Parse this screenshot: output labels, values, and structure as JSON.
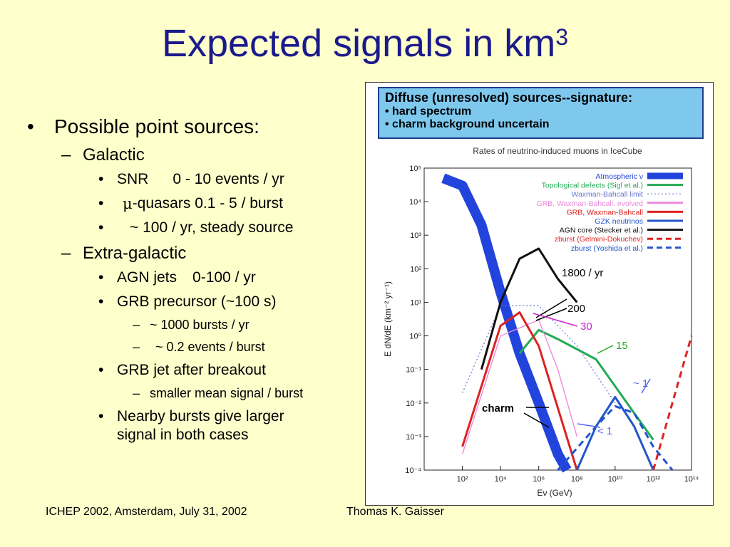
{
  "slide": {
    "title": "Expected signals in km",
    "title_sup": "3",
    "bullets": {
      "b1": "Possible point sources:",
      "galactic": "Galactic",
      "snr_label": "SNR",
      "snr_value": "0 - 10 events / yr",
      "mu": "μ",
      "quasar_text": "-quasars  0.1 - 5 / burst",
      "steady": "~ 100 / yr, steady source",
      "extragalactic": "Extra-galactic",
      "agn_label": "AGN jets",
      "agn_value": "0-100 / yr",
      "grb_precursor": "GRB precursor (~100 s)",
      "bursts": "~ 1000 bursts / yr",
      "events_per_burst": "~ 0.2 events / burst",
      "grb_jet": "GRB jet after breakout",
      "smaller_signal": "smaller mean signal / burst",
      "nearby1": "Nearby bursts give larger",
      "nearby2": "signal in both cases"
    },
    "footer": {
      "left": "ICHEP 2002, Amsterdam, July 31, 2002",
      "center": "Thomas K. Gaisser"
    }
  },
  "callout": {
    "heading": "Diffuse (unresolved) sources--signature:",
    "item1": "• hard spectrum",
    "item2": "• charm background uncertain"
  },
  "chart_data": {
    "type": "line",
    "title": "Rates of neutrino-induced muons in IceCube",
    "xlabel": "Eν  (GeV)",
    "ylabel": "E  dN/dE  (km⁻²  yr⁻¹)",
    "xscale": "log",
    "yscale": "log",
    "xlim": [
      1,
      100000000000000
    ],
    "ylim": [
      0.0001,
      100000
    ],
    "xticks": [
      "10²",
      "10⁴",
      "10⁶",
      "10⁸",
      "10¹⁰",
      "10¹²",
      "10¹⁴"
    ],
    "yticks": [
      "10⁵",
      "10⁴",
      "10³",
      "10²",
      "10¹",
      "10⁰",
      "10⁻¹",
      "10⁻²",
      "10⁻³",
      "10⁻⁴"
    ],
    "legend_position": "top-right",
    "series": [
      {
        "name": "Atmospheric ν",
        "color": "#2244dd",
        "style": "band",
        "points": [
          [
            10,
            50000
          ],
          [
            100,
            30000
          ],
          [
            1000,
            2000
          ],
          [
            10000,
            20
          ],
          [
            100000,
            0.3
          ],
          [
            1000000,
            0.01
          ],
          [
            10000000,
            0.0003
          ],
          [
            30000000,
            0.0001
          ]
        ]
      },
      {
        "name": "Topological defects (Sigl et al.)",
        "color": "#22aa55",
        "style": "solid",
        "points": [
          [
            100000,
            0.3
          ],
          [
            1000000,
            1.5
          ],
          [
            10000000,
            0.8
          ],
          [
            1000000000,
            0.2
          ],
          [
            100000000000,
            0.005
          ],
          [
            1000000000000,
            0.0008
          ]
        ]
      },
      {
        "name": "Waxman-Bahcall limit",
        "color": "#6677cc",
        "style": "dotted",
        "points": [
          [
            100,
            0.02
          ],
          [
            10000,
            8
          ],
          [
            1000000,
            8
          ],
          [
            100000000,
            0.5
          ],
          [
            10000000000,
            0.01
          ]
        ]
      },
      {
        "name": "GRB, Waxman-Bahcall, evolved",
        "color": "#ee88dd",
        "style": "solid",
        "points": [
          [
            100,
            0.0003
          ],
          [
            10000,
            1
          ],
          [
            1000000,
            3
          ],
          [
            10000000,
            0.1
          ],
          [
            100000000,
            0.001
          ]
        ]
      },
      {
        "name": "GRB, Waxman-Bahcall",
        "color": "#dd2222",
        "style": "solid",
        "points": [
          [
            100,
            0.0005
          ],
          [
            10000,
            2
          ],
          [
            100000,
            5
          ],
          [
            1000000,
            0.5
          ],
          [
            100000000,
            0.0001
          ]
        ]
      },
      {
        "name": "GZK neutrinos",
        "color": "#2255cc",
        "style": "solid",
        "points": [
          [
            100000000,
            0.0001
          ],
          [
            1000000000,
            0.002
          ],
          [
            10000000000,
            0.015
          ],
          [
            100000000000,
            0.002
          ],
          [
            1000000000000,
            0.0001
          ]
        ]
      },
      {
        "name": "AGN core (Stecker et al.)",
        "color": "#111111",
        "style": "solid",
        "points": [
          [
            1000,
            0.1
          ],
          [
            10000,
            10
          ],
          [
            100000,
            200
          ],
          [
            1000000,
            400
          ],
          [
            10000000,
            50
          ],
          [
            100000000,
            10
          ]
        ]
      },
      {
        "name": "zburst (Gelmini-Dokuchev)",
        "color": "#dd2222",
        "style": "dashed",
        "points": [
          [
            1000000000000,
            0.0001
          ],
          [
            10000000000000,
            0.01
          ],
          [
            100000000000000,
            1
          ]
        ]
      },
      {
        "name": "zburst (Yoshida et al.)",
        "color": "#2255cc",
        "style": "dashed",
        "points": [
          [
            10000000,
            0.0001
          ],
          [
            1000000000,
            0.002
          ],
          [
            10000000000,
            0.008
          ],
          [
            100000000000,
            0.005
          ],
          [
            1000000000000,
            0.0005
          ],
          [
            10000000000000,
            0.0001
          ]
        ]
      }
    ],
    "annotations": [
      {
        "text": "1800 / yr",
        "color": "#000000"
      },
      {
        "text": "200",
        "color": "#000000"
      },
      {
        "text": "30",
        "color": "#cc22cc"
      },
      {
        "text": "15",
        "color": "#22aa22"
      },
      {
        "text": "~ 1",
        "color": "#5566ee"
      },
      {
        "text": "charm",
        "color": "#000000"
      },
      {
        "text": "< 1",
        "color": "#5566ee"
      }
    ]
  }
}
